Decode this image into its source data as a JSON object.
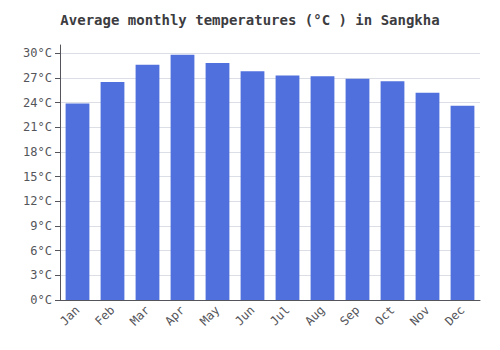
{
  "chart_data": {
    "type": "bar",
    "title": "Average monthly temperatures (°C ) in Sangkha",
    "categories": [
      "Jan",
      "Feb",
      "Mar",
      "Apr",
      "May",
      "Jun",
      "Jul",
      "Aug",
      "Sep",
      "Oct",
      "Nov",
      "Dec"
    ],
    "values": [
      23.9,
      26.5,
      28.6,
      29.8,
      28.8,
      27.8,
      27.3,
      27.2,
      26.9,
      26.6,
      25.2,
      23.6
    ],
    "ylim": [
      0,
      31
    ],
    "yticks": [
      {
        "value": 0,
        "label": "0°C"
      },
      {
        "value": 3,
        "label": "3°C"
      },
      {
        "value": 6,
        "label": "6°C"
      },
      {
        "value": 9,
        "label": "9°C"
      },
      {
        "value": 12,
        "label": "12°C"
      },
      {
        "value": 15,
        "label": "15°C"
      },
      {
        "value": 18,
        "label": "18°C"
      },
      {
        "value": 21,
        "label": "21°C"
      },
      {
        "value": 24,
        "label": "24°C"
      },
      {
        "value": 27,
        "label": "27°C"
      },
      {
        "value": 30,
        "label": "30°C"
      }
    ],
    "grid": true
  }
}
